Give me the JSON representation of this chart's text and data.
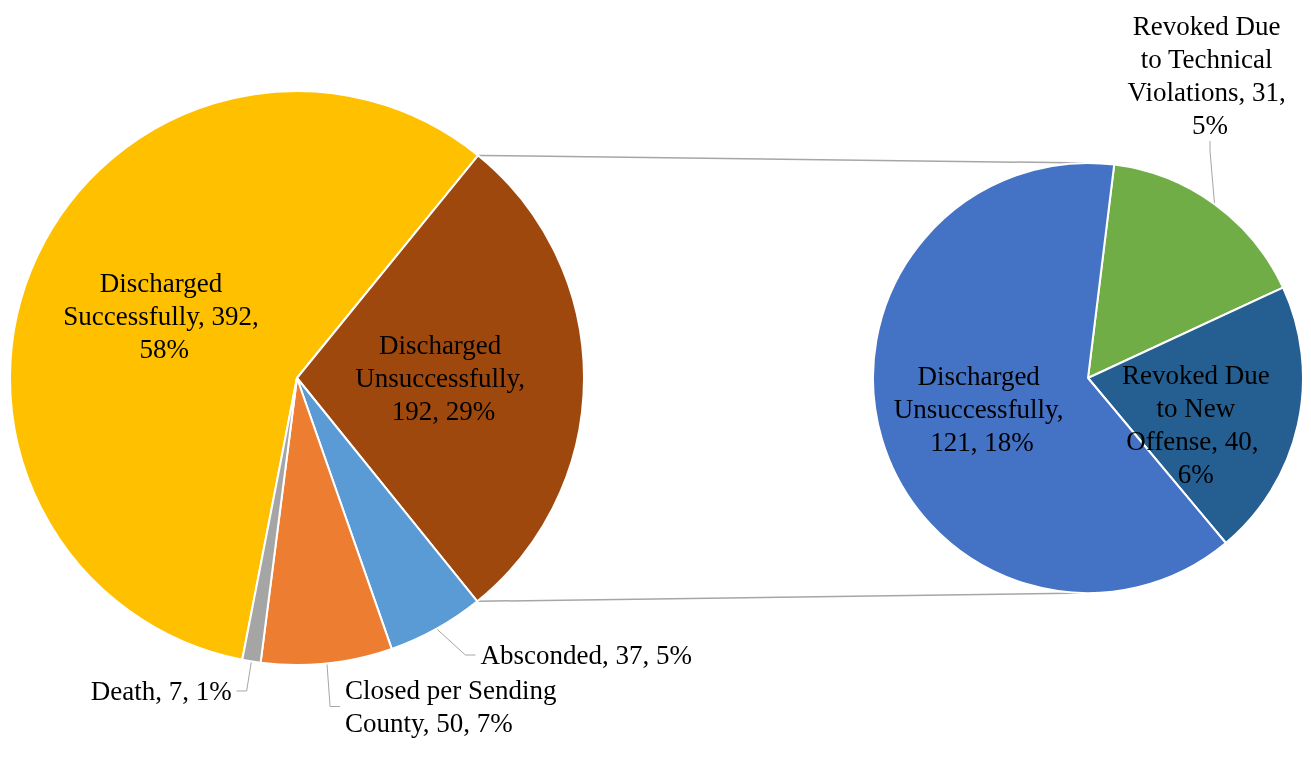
{
  "chart_data": [
    {
      "type": "pie",
      "categories": [
        "Discharged Successfully",
        "Discharged Unsuccessfully",
        "Absconded",
        "Closed per Sending County",
        "Death"
      ],
      "values": [
        392,
        192,
        37,
        50,
        7
      ],
      "colors": [
        "#ffc000",
        "#9e480e",
        "#5b9bd5",
        "#ed7d31",
        "#a5a5a5"
      ],
      "value_labels": [
        ", 392, 58%",
        ", 192, 29%",
        ", 37, 5%",
        ", 50, 7%",
        ", 7, 1%"
      ]
    },
    {
      "type": "pie",
      "categories": [
        "Revoked Due to Technical Violations",
        "Revoked Due to New Offense",
        "Discharged Unsuccessfully"
      ],
      "values": [
        31,
        40,
        121
      ],
      "colors": [
        "#70ad47",
        "#255e91",
        "#4472c4"
      ],
      "value_labels": [
        ", 31, 5%",
        ", 40, 6%",
        ", 121, 18%"
      ]
    }
  ]
}
